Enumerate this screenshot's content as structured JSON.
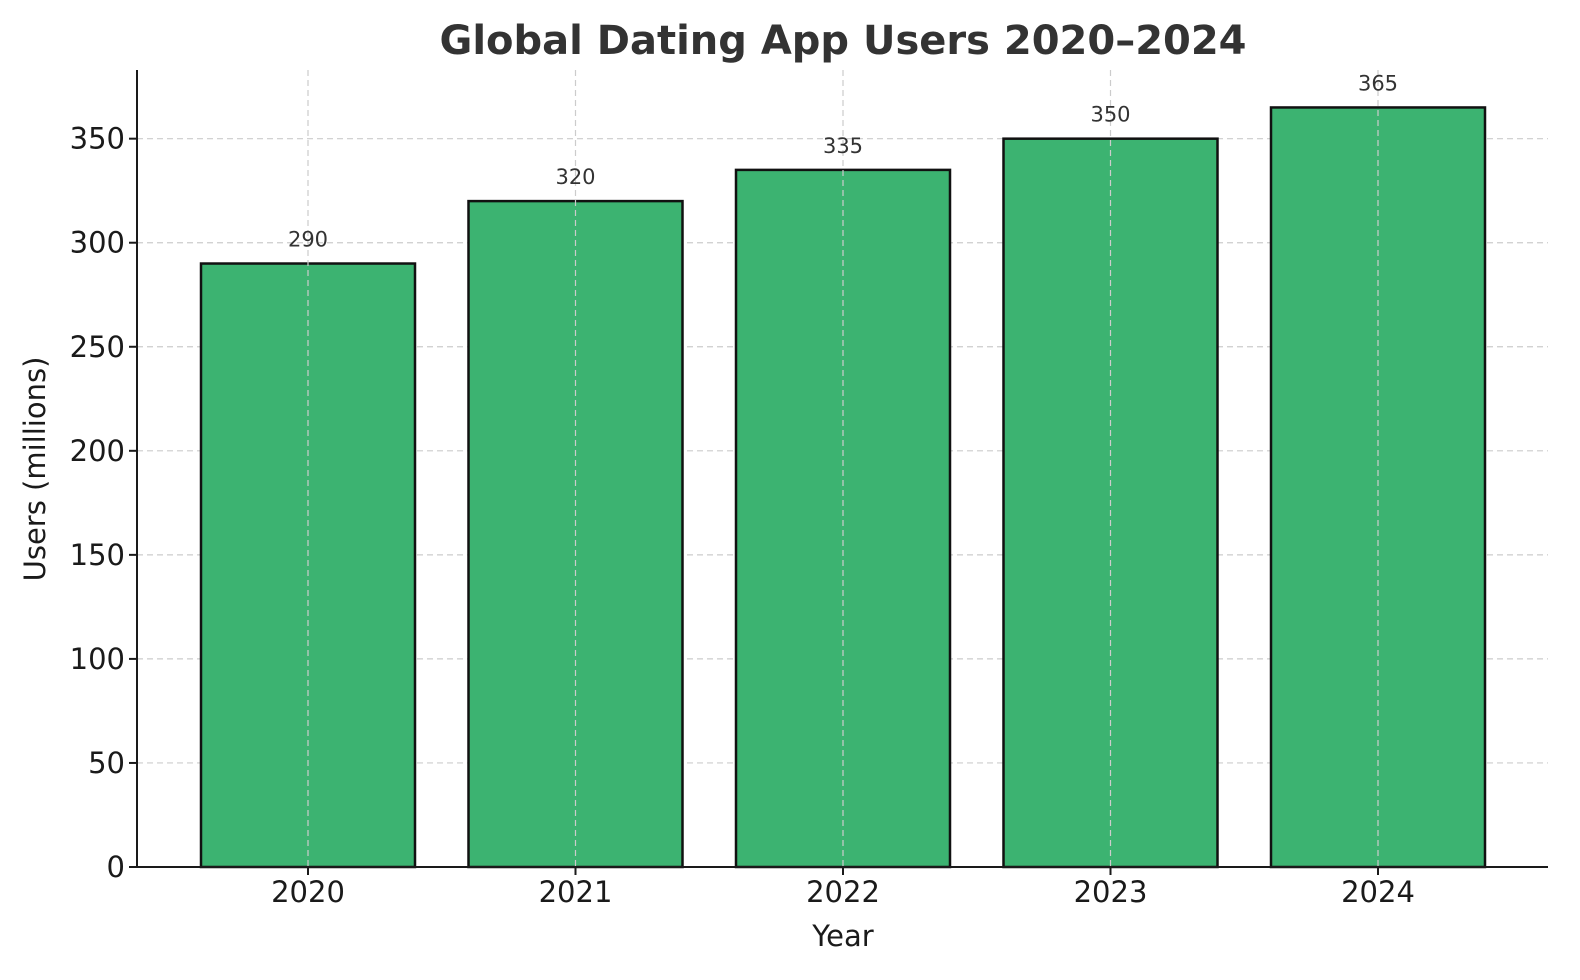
{
  "chart_data": {
    "type": "bar",
    "title": "Global Dating App Users 2020–2024",
    "xlabel": "Year",
    "ylabel": "Users (millions)",
    "categories": [
      "2020",
      "2021",
      "2022",
      "2023",
      "2024"
    ],
    "values": [
      290,
      320,
      335,
      350,
      365
    ],
    "data_labels": [
      "290",
      "320",
      "335",
      "350",
      "365"
    ],
    "ylim": [
      0,
      383
    ],
    "yticks": [
      0,
      50,
      100,
      150,
      200,
      250,
      300,
      350
    ],
    "ytick_labels": [
      "0",
      "50",
      "100",
      "150",
      "200",
      "250",
      "300",
      "350"
    ],
    "grid": true,
    "legend": "none",
    "bar_color": "#3cb371",
    "bar_edge_color": "#111111"
  }
}
